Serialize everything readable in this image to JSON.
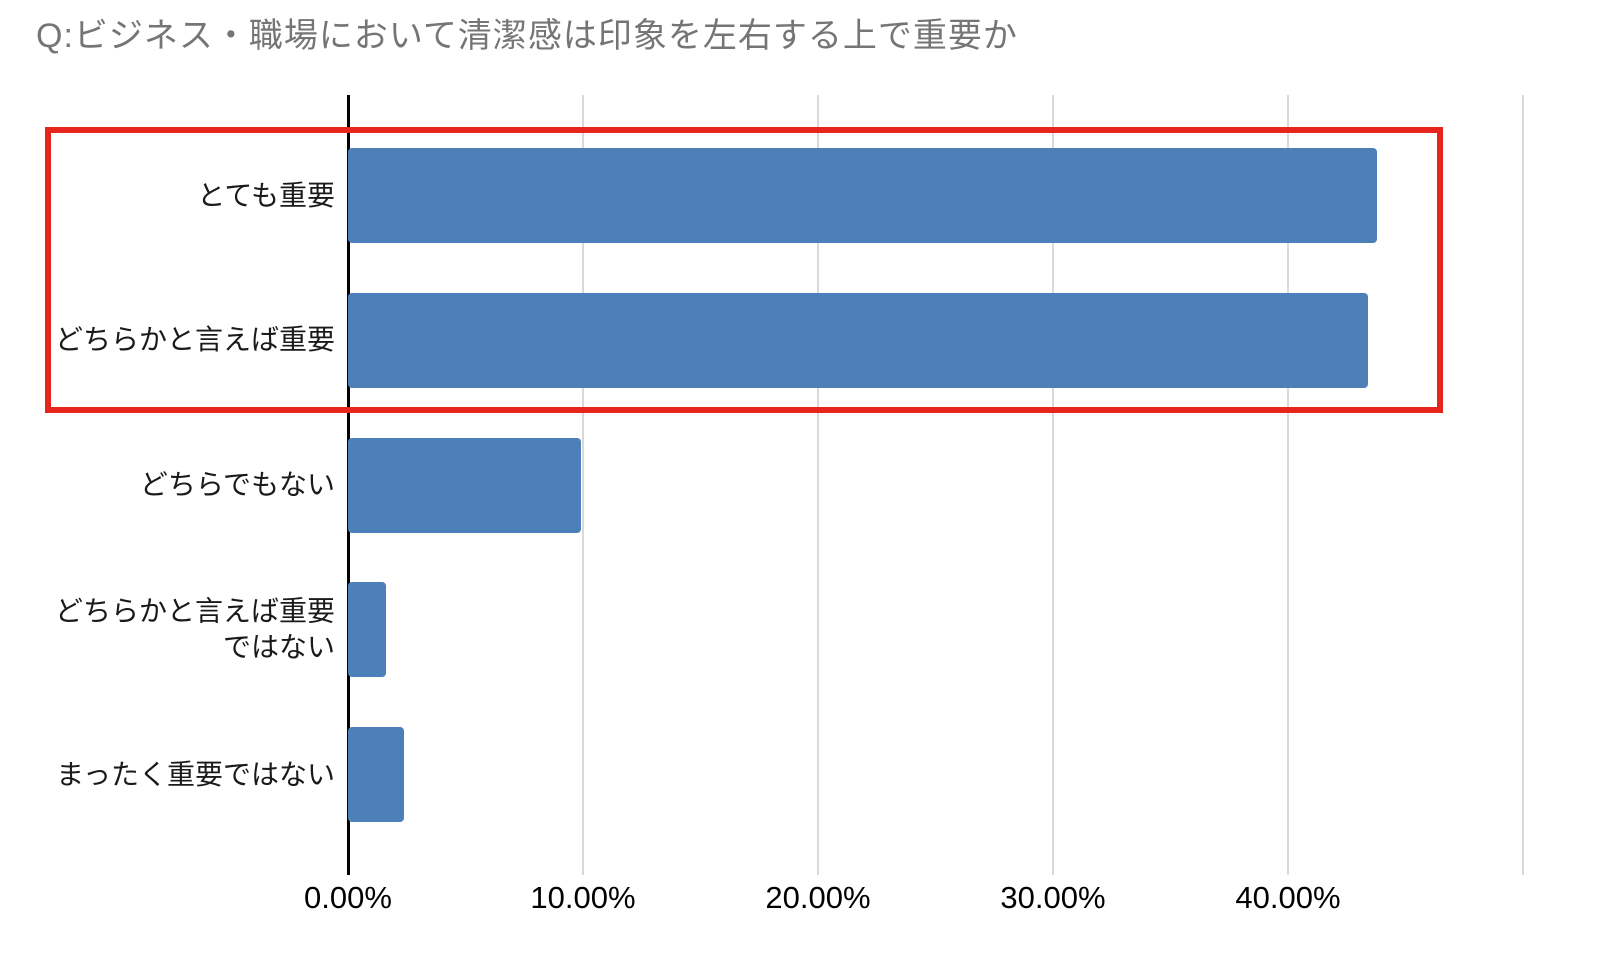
{
  "title": "Q:ビジネス・職場において清潔感は印象を左右する上で重要か",
  "colors": {
    "bar": "#4d7fb9",
    "highlight": "#e8251c",
    "grid": "#d9d9d9",
    "axis": "#000000",
    "title_text": "#757575"
  },
  "chart_data": {
    "type": "bar",
    "orientation": "horizontal",
    "title": "Q:ビジネス・職場において清潔感は印象を左右する上で重要か",
    "categories": [
      "とても重要",
      "どちらかと言えば重要",
      "どちらでもない",
      "どちらかと言えば重要ではない",
      "まったく重要ではない"
    ],
    "values": [
      43.8,
      43.4,
      9.9,
      1.6,
      2.4
    ],
    "value_unit": "%",
    "x_ticks": [
      0,
      10,
      20,
      30,
      40
    ],
    "x_tick_labels": [
      "0.00%",
      "10.00%",
      "20.00%",
      "30.00%",
      "40.00%"
    ],
    "xlim": [
      0,
      50
    ],
    "grid": true,
    "legend": "none",
    "annotation": "red rectangle highlighting the top two bars (とても重要, どちらかと言えば重要)"
  }
}
